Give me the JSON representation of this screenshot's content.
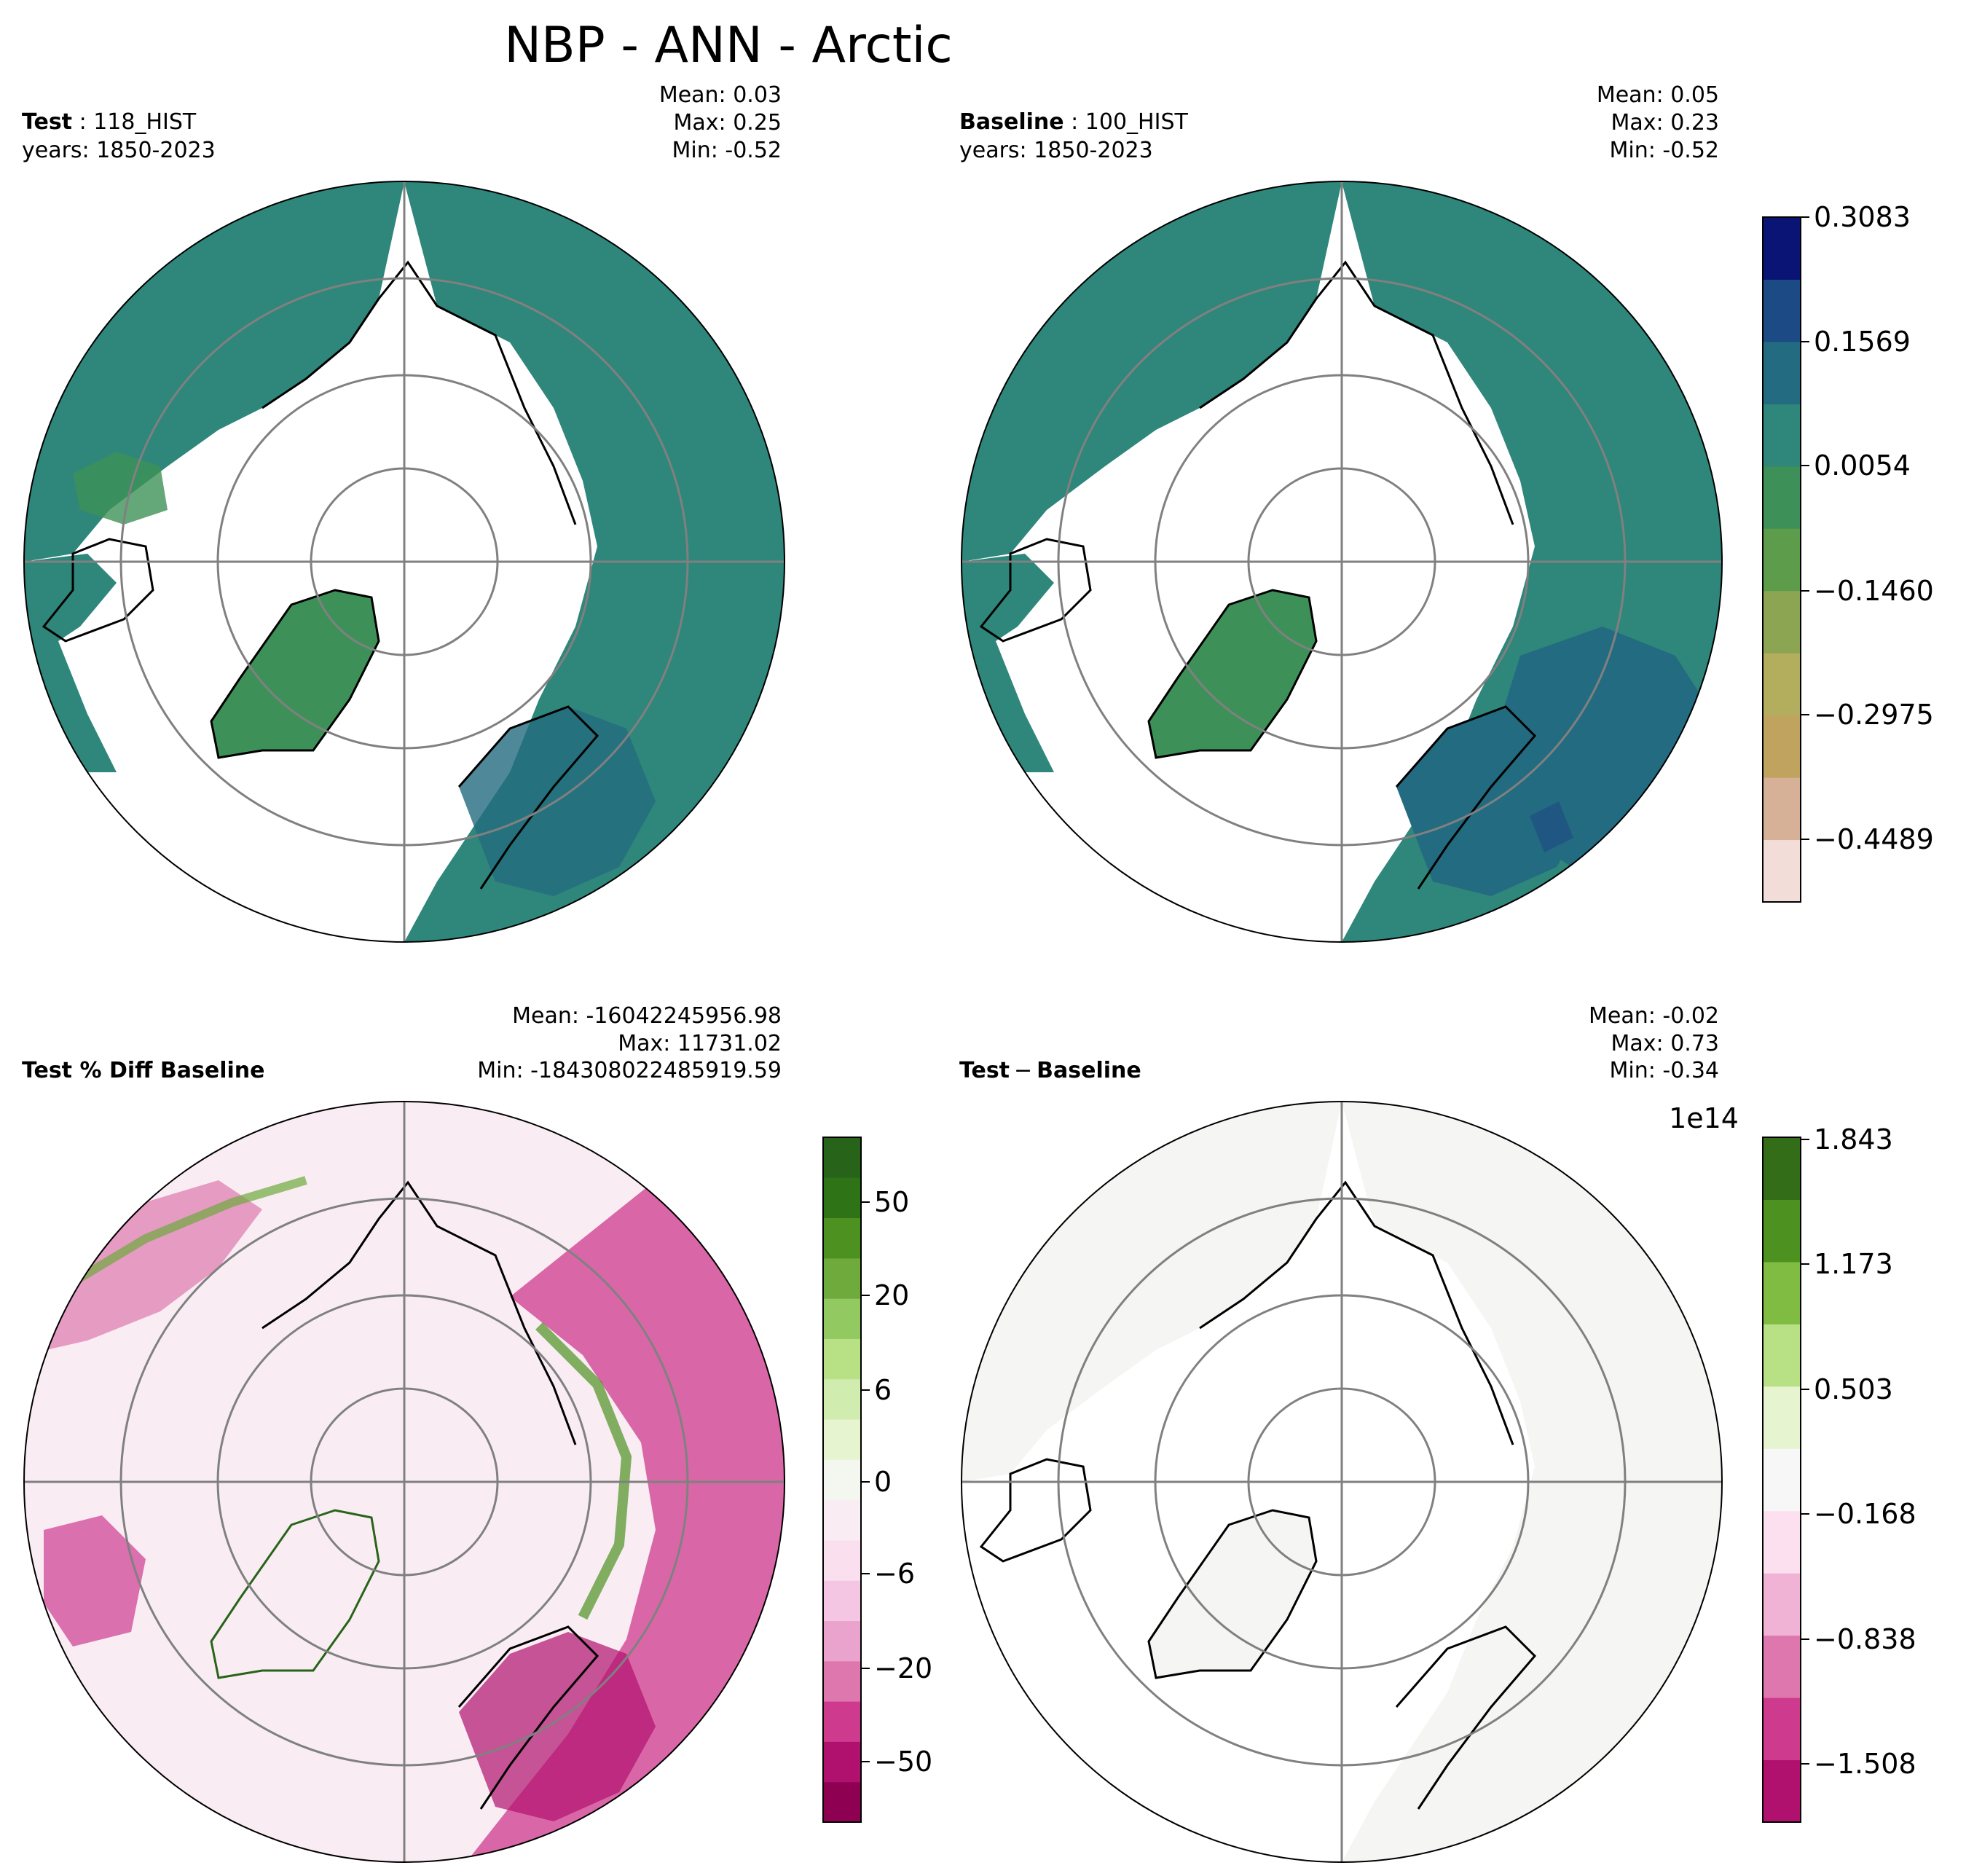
{
  "figure": {
    "title": "NBP - ANN - Arctic"
  },
  "panels": {
    "test": {
      "label": "Test",
      "case": "118_HIST",
      "years": "years: 1850-2023",
      "mean": "Mean:  0.03",
      "max": "Max:  0.25",
      "min": "Min: -0.52"
    },
    "baseline": {
      "label": "Baseline",
      "case": "100_HIST",
      "years": "years: 1850-2023",
      "mean": "Mean:  0.05",
      "max": "Max:  0.23",
      "min": "Min: -0.52"
    },
    "pct_diff": {
      "label": "Test % Diff Baseline",
      "mean": "Mean: -16042245956.98",
      "max": "Max: 11731.02",
      "min": "Min: -184308022485919.59"
    },
    "diff": {
      "label_a": "Test",
      "label_sep": "−",
      "label_b": "Baseline",
      "mean": "Mean: -0.02",
      "max": "Max:  0.73",
      "min": "Min: -0.34"
    }
  },
  "colorbars": {
    "main": {
      "ticks": [
        "0.3083",
        "0.1569",
        "0.0054",
        "−0.1460",
        "−0.2975",
        "−0.4489"
      ],
      "colors": [
        "#f2ddd8",
        "#d7b197",
        "#c0a35f",
        "#b3ad5e",
        "#8ca552",
        "#5c9c4b",
        "#3d9158",
        "#2f867a",
        "#236b80",
        "#1c4a84",
        "#0a1474"
      ]
    },
    "pct": {
      "ticks": [
        "50",
        "20",
        "6",
        "0",
        "−6",
        "−20",
        "−50"
      ],
      "colors": [
        "#8e0152",
        "#b1116e",
        "#cd3a8e",
        "#de77ae",
        "#eaa3cc",
        "#f4c6e3",
        "#fae0ef",
        "#f9edf3",
        "#f4f6f0",
        "#e6f5d0",
        "#d1ecaf",
        "#b8e186",
        "#93c961",
        "#6eaa3c",
        "#4d9221",
        "#2e7417",
        "#276419"
      ]
    },
    "diff": {
      "exponent": "1e14",
      "ticks": [
        "1.843",
        "1.173",
        "0.503",
        "−0.168",
        "−0.838",
        "−1.508"
      ],
      "colors": [
        "#b1116e",
        "#cd3a8e",
        "#de77ae",
        "#f0b3d6",
        "#fde0ef",
        "#f7f7f7",
        "#e6f5d0",
        "#b8e186",
        "#7fbc41",
        "#4d9221",
        "#336d18"
      ]
    }
  }
}
